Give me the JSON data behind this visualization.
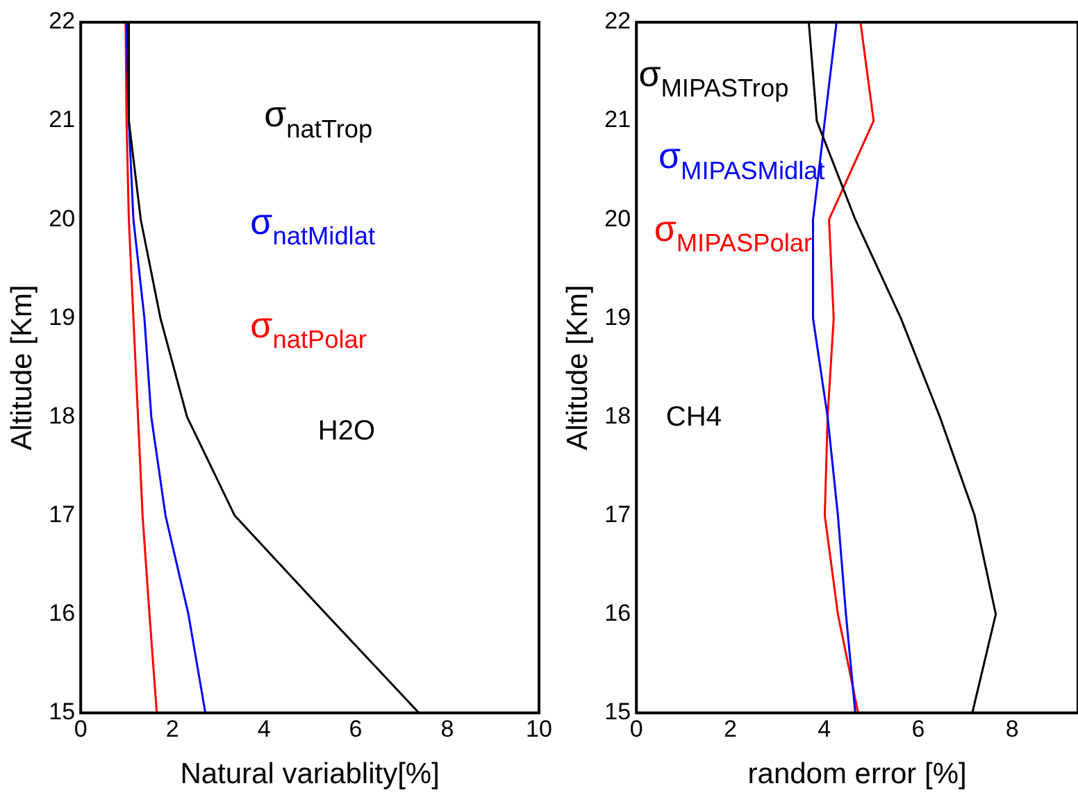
{
  "chart_data": [
    {
      "type": "line",
      "xlabel": "Natural variablity[%]",
      "ylabel": "Altitude [Km]",
      "xlim": [
        0,
        10
      ],
      "xticks": [
        0,
        2,
        4,
        6,
        8,
        10
      ],
      "ylim": [
        15,
        22
      ],
      "yticks": [
        15,
        16,
        17,
        18,
        19,
        20,
        21,
        22
      ],
      "grid": false,
      "legend": "top right",
      "annotations": [
        "H2O"
      ],
      "series": [
        {
          "name": "σ$_{natTrop}$",
          "color": "#000000",
          "x": [
            1.04,
            1.05,
            1.31,
            1.74,
            2.32,
            3.36,
            5.36,
            7.38
          ],
          "values": [
            22,
            21,
            20,
            19,
            18,
            17,
            16,
            15
          ]
        },
        {
          "name": "σ$_{natMidlat}$",
          "color": "#0000ff",
          "x": [
            1.0,
            1.05,
            1.15,
            1.39,
            1.54,
            1.85,
            2.35,
            2.72
          ],
          "values": [
            22,
            21,
            20,
            19,
            18,
            17,
            16,
            15
          ]
        },
        {
          "name": "σ$_{natPolar}$",
          "color": "#ff0000",
          "x": [
            0.98,
            1.0,
            1.05,
            1.15,
            1.25,
            1.35,
            1.5,
            1.66
          ],
          "values": [
            22,
            21,
            20,
            19,
            18,
            17,
            16,
            15
          ]
        }
      ]
    },
    {
      "type": "line",
      "xlabel": "random error [%]",
      "ylabel": "Altitude [Km]",
      "xlim": [
        0,
        9.4
      ],
      "xticks": [
        0,
        2,
        4,
        6,
        8
      ],
      "ylim": [
        15,
        22
      ],
      "yticks": [
        15,
        16,
        17,
        18,
        19,
        20,
        21,
        22
      ],
      "grid": false,
      "legend": "top left",
      "annotations": [
        "CH4"
      ],
      "series": [
        {
          "name": "σ$_{MIPASTrop}$",
          "color": "#000000",
          "x": [
            3.67,
            3.84,
            4.66,
            5.63,
            6.46,
            7.2,
            7.65,
            7.15
          ],
          "values": [
            22,
            21,
            20,
            19,
            18,
            17,
            16,
            15
          ]
        },
        {
          "name": "σ$_{MIPASMidlat}$",
          "color": "#0000ff",
          "x": [
            4.26,
            4.01,
            3.76,
            3.76,
            4.07,
            4.29,
            4.46,
            4.66
          ],
          "values": [
            22,
            21,
            20,
            19,
            18,
            17,
            16,
            15
          ]
        },
        {
          "name": "σ$_{MIPASPolar}$",
          "color": "#ff0000",
          "x": [
            4.77,
            5.05,
            4.1,
            4.2,
            4.07,
            4.01,
            4.29,
            4.72
          ],
          "values": [
            22,
            21,
            20,
            19,
            18,
            17,
            16,
            15
          ]
        }
      ]
    }
  ]
}
